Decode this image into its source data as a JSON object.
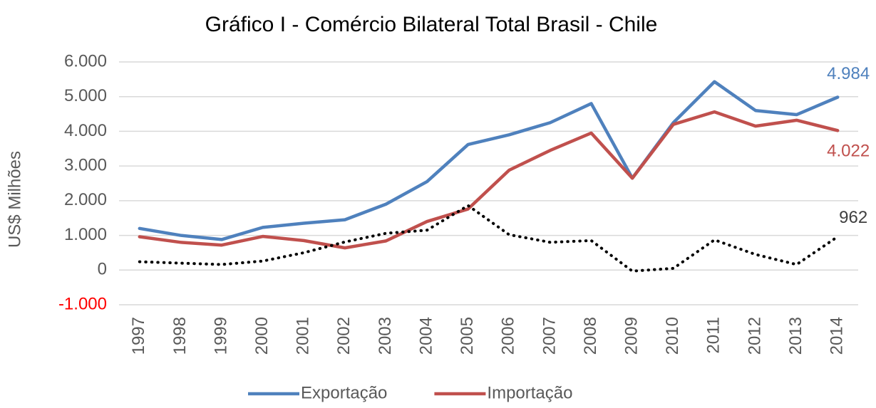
{
  "chart_data": {
    "type": "line",
    "title": "Gráfico I - Comércio Bilateral Total Brasil - Chile",
    "y_label": "US$ Milhões",
    "categories": [
      "1997",
      "1998",
      "1999",
      "2000",
      "2001",
      "2002",
      "2003",
      "2004",
      "2005",
      "2006",
      "2007",
      "2008",
      "2009",
      "2010",
      "2011",
      "2012",
      "2013",
      "2014"
    ],
    "series": [
      {
        "name": "Exportação",
        "color": "#4f81bd",
        "style": "solid",
        "values": [
          1200,
          1000,
          880,
          1230,
          1350,
          1450,
          1900,
          2550,
          3620,
          3900,
          4250,
          4800,
          2650,
          4250,
          5430,
          4600,
          4480,
          4984
        ],
        "value_labels": [
          null,
          null,
          null,
          null,
          null,
          null,
          null,
          null,
          null,
          null,
          null,
          null,
          null,
          null,
          null,
          null,
          null,
          "4.984"
        ]
      },
      {
        "name": "Importação",
        "color": "#c0504d",
        "style": "solid",
        "values": [
          960,
          800,
          720,
          970,
          850,
          640,
          840,
          1400,
          1760,
          2880,
          3450,
          3950,
          2650,
          4200,
          4560,
          4150,
          4320,
          4022
        ],
        "value_labels": [
          null,
          null,
          null,
          null,
          null,
          null,
          null,
          null,
          null,
          null,
          null,
          null,
          null,
          null,
          null,
          null,
          null,
          "4.022"
        ]
      },
      {
        "color": "#000000",
        "style": "dotted",
        "values": [
          240,
          200,
          160,
          260,
          500,
          810,
          1060,
          1150,
          1860,
          1020,
          800,
          850,
          -30,
          50,
          870,
          450,
          160,
          962
        ]
      }
    ],
    "ylim": [
      -1000,
      6000
    ],
    "yticks": [
      {
        "value": -1000,
        "label": "-1.000",
        "color": "#ff0000"
      },
      0,
      {
        "value": 1000,
        "label": "1.000"
      },
      {
        "value": 2000,
        "label": "2.000"
      },
      {
        "value": 3000,
        "label": "3.000"
      },
      {
        "value": 4000,
        "label": "4.000"
      },
      {
        "value": 5000,
        "label": "5.000"
      },
      {
        "value": 6000,
        "label": "6.000"
      }
    ],
    "grid": true
  }
}
